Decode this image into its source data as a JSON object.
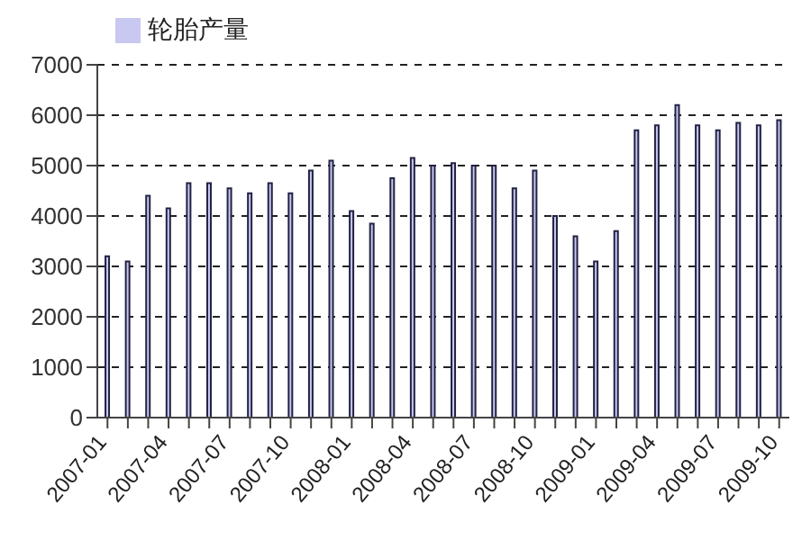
{
  "chart_data": {
    "type": "bar",
    "categories": [
      "2007-01",
      null,
      null,
      "2007-04",
      null,
      null,
      "2007-07",
      null,
      null,
      "2007-10",
      null,
      null,
      "2008-01",
      null,
      null,
      "2008-04",
      null,
      null,
      "2008-07",
      null,
      null,
      "2008-10",
      null,
      null,
      "2009-01",
      null,
      null,
      "2009-04",
      null,
      null,
      "2009-07",
      null,
      null,
      "2009-10"
    ],
    "series": [
      {
        "name": "轮胎产量",
        "color": "#c8c8f0",
        "values": [
          3200,
          3100,
          4400,
          4150,
          4650,
          4650,
          4550,
          4450,
          4650,
          4450,
          4900,
          5100,
          4100,
          3850,
          4750,
          5150,
          5000,
          5050,
          5000,
          5000,
          4550,
          4900,
          4000,
          3600,
          3100,
          3700,
          5700,
          5800,
          6200,
          5800,
          5700,
          5850,
          5800,
          5900
        ]
      }
    ],
    "ylim": [
      0,
      7000
    ],
    "yticks": [
      0,
      1000,
      2000,
      3000,
      4000,
      5000,
      6000,
      7000
    ],
    "grid": "y",
    "legend": "top left"
  }
}
